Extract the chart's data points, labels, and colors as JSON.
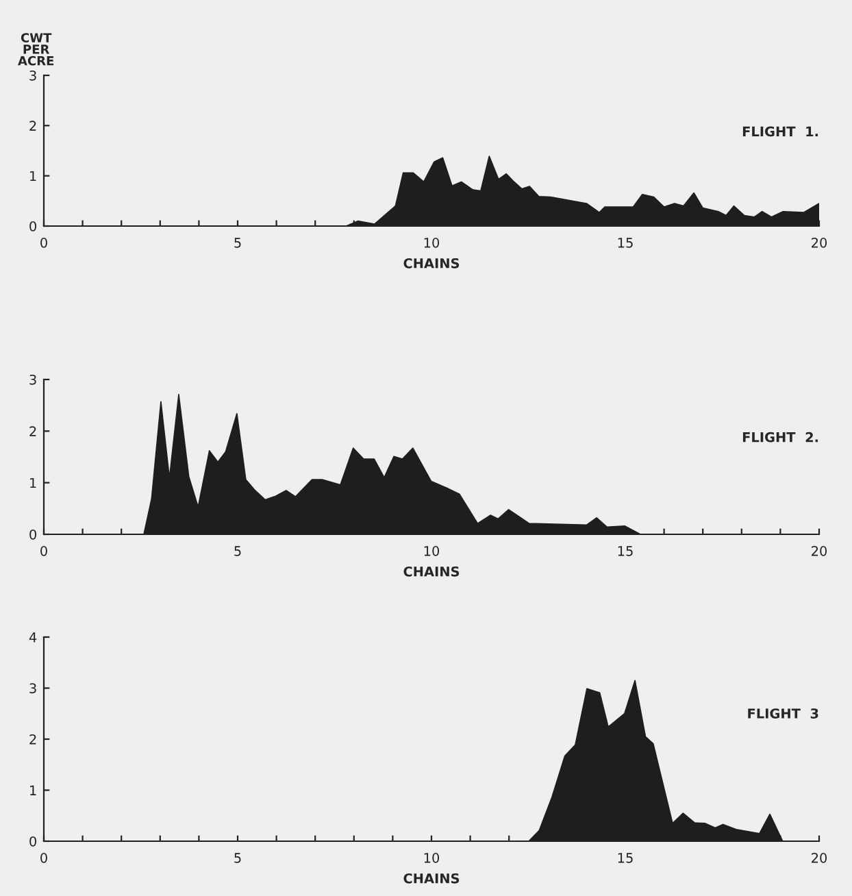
{
  "chart_data": [
    {
      "type": "area",
      "ylabel": "CWT\nPER\nACRE",
      "xlabel": "CHAINS",
      "annotations": [
        "FLIGHT  1."
      ],
      "color": "#1e1e1e",
      "x": [
        0,
        7.8,
        8.1,
        8.53,
        9.07,
        9.27,
        9.53,
        9.8,
        10.07,
        10.29,
        10.53,
        10.77,
        11.07,
        11.27,
        11.49,
        11.73,
        11.93,
        12.13,
        12.33,
        12.53,
        12.77,
        13.07,
        14.0,
        14.33,
        14.47,
        15.2,
        15.44,
        15.73,
        16.0,
        16.27,
        16.5,
        16.77,
        17.0,
        17.4,
        17.6,
        17.8,
        18.07,
        18.33,
        18.53,
        18.77,
        19.07,
        19.6,
        20
      ],
      "values": [
        0,
        0,
        0.1,
        0.04,
        0.4,
        1.06,
        1.06,
        0.88,
        1.28,
        1.36,
        0.8,
        0.88,
        0.72,
        0.7,
        1.39,
        0.93,
        1.04,
        0.88,
        0.74,
        0.79,
        0.59,
        0.58,
        0.45,
        0.27,
        0.38,
        0.38,
        0.63,
        0.58,
        0.38,
        0.45,
        0.4,
        0.66,
        0.36,
        0.29,
        0.21,
        0.4,
        0.21,
        0.18,
        0.29,
        0.18,
        0.29,
        0.27,
        0.45
      ],
      "xlim": [
        0,
        20
      ],
      "ylim": [
        0,
        3
      ],
      "yticks": [
        0,
        1,
        2,
        3
      ],
      "xticks": [
        0,
        {
          "value": 1,
          "label": null
        },
        {
          "value": 2,
          "label": null
        },
        {
          "value": 3,
          "label": null
        },
        {
          "value": 4,
          "label": null
        },
        5,
        {
          "value": 6,
          "label": null
        },
        {
          "value": 7,
          "label": null
        },
        {
          "value": 8,
          "label": null
        },
        {
          "value": 9,
          "label": null
        },
        10,
        {
          "value": 11,
          "label": null
        },
        {
          "value": 12,
          "label": null
        },
        {
          "value": 13,
          "label": null
        },
        {
          "value": 14,
          "label": null
        },
        15,
        {
          "value": 16,
          "label": null
        },
        {
          "value": 17,
          "label": null
        },
        {
          "value": 18,
          "label": null
        },
        {
          "value": 19,
          "label": null
        },
        20
      ]
    },
    {
      "type": "area",
      "xlabel": "CHAINS",
      "annotations": [
        "FLIGHT  2."
      ],
      "color": "#1e1e1e",
      "x": [
        0,
        2.58,
        2.78,
        3.02,
        3.24,
        3.48,
        3.74,
        3.98,
        4.27,
        4.49,
        4.69,
        4.98,
        5.21,
        5.45,
        5.71,
        5.98,
        6.25,
        6.49,
        6.92,
        7.18,
        7.65,
        7.98,
        8.25,
        8.52,
        8.78,
        9.03,
        9.25,
        9.52,
        9.99,
        10.39,
        10.72,
        11.19,
        11.52,
        11.72,
        11.99,
        12.52,
        14.0,
        14.26,
        14.53,
        14.99,
        15.39,
        20
      ],
      "values": [
        0,
        0,
        0.69,
        2.57,
        1.09,
        2.71,
        1.12,
        0.53,
        1.62,
        1.4,
        1.6,
        2.34,
        1.06,
        0.85,
        0.67,
        0.74,
        0.85,
        0.73,
        1.06,
        1.06,
        0.96,
        1.67,
        1.46,
        1.46,
        1.1,
        1.51,
        1.46,
        1.67,
        1.03,
        0.9,
        0.78,
        0.21,
        0.37,
        0.3,
        0.48,
        0.21,
        0.18,
        0.32,
        0.14,
        0.16,
        0,
        0
      ],
      "xlim": [
        0,
        20
      ],
      "ylim": [
        0,
        3
      ],
      "yticks": [
        0,
        1,
        2,
        3
      ],
      "xticks": [
        0,
        {
          "value": 1,
          "label": null
        },
        {
          "value": 2,
          "label": null
        },
        {
          "value": 3,
          "label": null
        },
        {
          "value": 4,
          "label": null
        },
        5,
        {
          "value": 6,
          "label": null
        },
        {
          "value": 7,
          "label": null
        },
        {
          "value": 8,
          "label": null
        },
        {
          "value": 9,
          "label": null
        },
        10,
        {
          "value": 11,
          "label": null
        },
        {
          "value": 12,
          "label": null
        },
        {
          "value": 13,
          "label": null
        },
        {
          "value": 14,
          "label": null
        },
        15,
        {
          "value": 16,
          "label": null
        },
        {
          "value": 17,
          "label": null
        },
        {
          "value": 18,
          "label": null
        },
        {
          "value": 19,
          "label": null
        },
        20
      ]
    },
    {
      "type": "area",
      "xlabel": "CHAINS",
      "annotations": [
        "FLIGHT  3"
      ],
      "color": "#1e1e1e",
      "x": [
        0,
        12.51,
        12.78,
        13.11,
        13.44,
        13.71,
        14.01,
        14.34,
        14.56,
        14.98,
        15.25,
        15.52,
        15.72,
        16.22,
        16.49,
        16.79,
        17.06,
        17.32,
        17.52,
        17.86,
        18.46,
        18.73,
        19.06,
        20
      ],
      "values": [
        0,
        0,
        0.21,
        0.87,
        1.67,
        1.89,
        2.99,
        2.91,
        2.24,
        2.5,
        3.15,
        2.05,
        1.91,
        0.35,
        0.55,
        0.36,
        0.35,
        0.26,
        0.33,
        0.23,
        0.15,
        0.53,
        0,
        0
      ],
      "xlim": [
        0,
        20
      ],
      "ylim": [
        0,
        4
      ],
      "yticks": [
        0,
        1,
        2,
        3,
        4
      ],
      "xticks": [
        0,
        {
          "value": 1,
          "label": null
        },
        {
          "value": 2,
          "label": null
        },
        {
          "value": 3,
          "label": null
        },
        {
          "value": 4,
          "label": null
        },
        5,
        {
          "value": 6,
          "label": null
        },
        {
          "value": 7,
          "label": null
        },
        {
          "value": 8,
          "label": null
        },
        {
          "value": 9,
          "label": null
        },
        10,
        {
          "value": 11,
          "label": null
        },
        {
          "value": 12,
          "label": null
        },
        {
          "value": 13,
          "label": null
        },
        {
          "value": 14,
          "label": null
        },
        15,
        {
          "value": 16,
          "label": null
        },
        {
          "value": 17,
          "label": null
        },
        {
          "value": 18,
          "label": null
        },
        {
          "value": 19,
          "label": null
        },
        20
      ]
    }
  ]
}
